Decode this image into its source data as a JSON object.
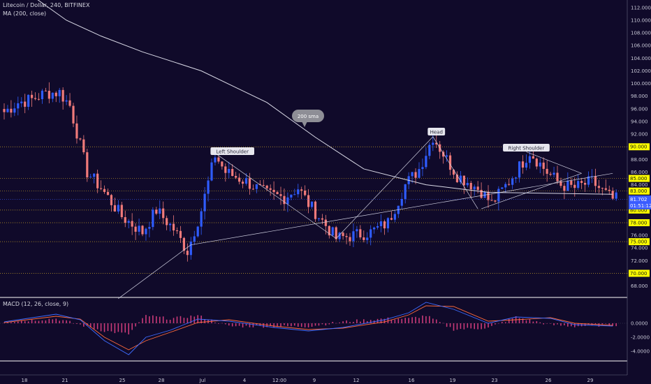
{
  "header": {
    "symbol_line": "Litecoin / Dollar, 240, BITFINEX",
    "ma_line": "MA (200, close)",
    "macd_line": "MACD (12, 26, close, 9)"
  },
  "colors": {
    "background": "#100a2a",
    "up_candle": "#2f5cff",
    "down_candle": "#f07a7a",
    "ma_line": "#d9d9e6",
    "trendline": "#cfcfe0",
    "level_line": "#c9a227",
    "level_tag": "#ffff00",
    "price_tag": "#3a5cff",
    "macd_line": "#3d6cff",
    "signal_line": "#ff6b3d",
    "histogram": "#c83a78"
  },
  "axes": {
    "price_ticks": [
      "112.000",
      "110.000",
      "108.000",
      "106.000",
      "104.000",
      "102.000",
      "100.000",
      "98.000",
      "96.000",
      "94.000",
      "92.000",
      "88.000",
      "86.000",
      "84.000",
      "76.000",
      "74.000",
      "72.000",
      "68.000"
    ],
    "price_range": [
      66.3,
      113.2
    ],
    "macd_ticks": [
      "0.0000",
      "-2.0000",
      "-4.0000"
    ],
    "macd_range": [
      -5.3,
      3.5
    ],
    "time_labels": [
      "18",
      "21",
      "25",
      "28",
      "Jul",
      "4",
      "12:00",
      "9",
      "12",
      "16",
      "19",
      "23",
      "26",
      "29"
    ]
  },
  "levels": {
    "values": [
      90,
      85,
      83,
      80,
      78,
      75,
      70
    ],
    "labels": [
      "90.000",
      "85.000",
      "83.000",
      "80.000",
      "78.000",
      "75.000",
      "70.000"
    ]
  },
  "current_price": {
    "price": "81.702",
    "countdown": "01:51:12",
    "value": 81.702
  },
  "annotations": {
    "sma_bubble": "200 sma",
    "left_shoulder": "Left Shoulder",
    "head": "Head",
    "right_shoulder": "Right Shoulder"
  },
  "chart_data": {
    "type": "candlestick",
    "instrument": "Litecoin / Dollar",
    "timeframe": "240",
    "exchange": "BITFINEX",
    "ylim": [
      66.3,
      113.2
    ],
    "anchors": {
      "time_index": [
        0,
        4,
        8,
        12,
        16,
        19,
        24,
        28,
        34,
        40,
        44,
        49,
        53,
        57,
        61,
        64,
        70,
        76,
        81,
        85,
        88,
        91,
        96,
        101,
        106,
        111,
        116,
        120,
        124,
        128,
        131,
        134,
        138,
        141,
        146,
        152,
        157,
        161,
        165,
        170,
        173,
        176
      ],
      "price": [
        95.5,
        97.0,
        97.5,
        98.5,
        98.6,
        96.5,
        86.0,
        83.5,
        79.0,
        76.5,
        80.0,
        77.0,
        73.5,
        80.0,
        88.7,
        86.0,
        84.5,
        82.5,
        82.0,
        83.5,
        81.0,
        79.0,
        75.5,
        76.0,
        76.5,
        78.0,
        84.0,
        86.5,
        91.6,
        88.0,
        85.5,
        84.5,
        83.0,
        81.0,
        84.5,
        89.2,
        86.0,
        84.0,
        83.5,
        84.5,
        83.0,
        81.7
      ]
    },
    "candle_count": 178,
    "ma200": {
      "name": "MA (200, close)",
      "time_index": [
        0,
        18,
        28,
        40,
        57,
        76,
        90,
        104,
        122,
        140,
        176
      ],
      "price": [
        117.0,
        110.0,
        107.5,
        105.0,
        102.0,
        97.0,
        91.5,
        86.5,
        84.0,
        82.8,
        82.5
      ]
    },
    "trendlines": [
      {
        "time_index": [
          33,
          54
        ],
        "price": [
          66.0,
          74.5
        ]
      },
      {
        "time_index": [
          54,
          176
        ],
        "price": [
          74.5,
          85.8
        ]
      },
      {
        "time_index": [
          61,
          96
        ],
        "price": [
          89.0,
          75.5
        ]
      },
      {
        "time_index": [
          96,
          124
        ],
        "price": [
          75.5,
          91.6
        ]
      },
      {
        "time_index": [
          124,
          137
        ],
        "price": [
          91.6,
          80.2
        ]
      },
      {
        "time_index": [
          151,
          167
        ],
        "price": [
          89.2,
          85.8
        ]
      },
      {
        "time_index": [
          138,
          167
        ],
        "price": [
          80.2,
          85.8
        ]
      }
    ],
    "macd": {
      "time_index": [
        0,
        15,
        22,
        29,
        36,
        41,
        48,
        56,
        65,
        78,
        88,
        98,
        110,
        117,
        122,
        130,
        140,
        148,
        158,
        165,
        176
      ],
      "macd": [
        0.2,
        1.3,
        0.5,
        -2.5,
        -4.5,
        -2.0,
        -1.0,
        0.6,
        0.3,
        -0.6,
        -1.1,
        -0.6,
        0.5,
        1.5,
        3.0,
        2.0,
        0.0,
        0.9,
        0.7,
        -0.2,
        -0.4
      ],
      "signal": [
        0.1,
        1.0,
        0.6,
        -2.0,
        -3.8,
        -2.5,
        -1.3,
        0.1,
        0.5,
        -0.4,
        -0.9,
        -0.7,
        0.2,
        1.2,
        2.5,
        2.4,
        0.3,
        0.5,
        0.8,
        0.0,
        -0.3
      ]
    }
  }
}
